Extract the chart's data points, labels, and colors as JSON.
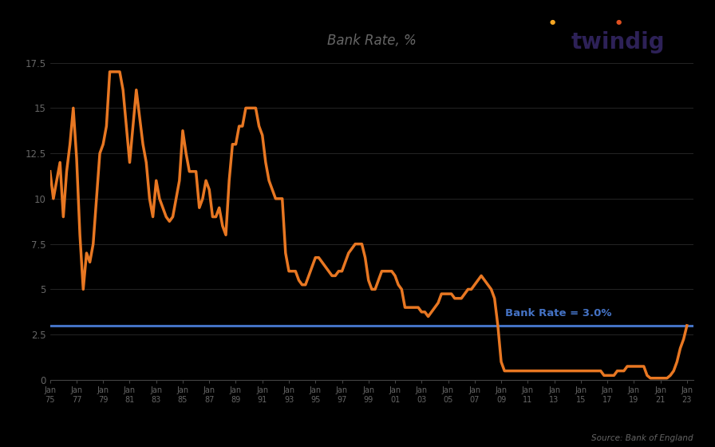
{
  "title": "Bank Rate, %",
  "source_text": "Source: Bank of England",
  "line_color": "#E87722",
  "hline_color": "#4472C4",
  "hline_value": 3.0,
  "hline_label": "Bank Rate = 3.0%",
  "bg_color": "#000000",
  "text_color": "#666666",
  "twindig_color": "#2D2157",
  "twindig_orange": "#E87722",
  "ylim": [
    0,
    18
  ],
  "yticks": [
    0,
    2.5,
    5,
    7.5,
    10,
    12.5,
    15,
    17.5
  ],
  "data": [
    [
      1975.0,
      11.5
    ],
    [
      1975.25,
      10.0
    ],
    [
      1975.5,
      11.0
    ],
    [
      1975.75,
      12.0
    ],
    [
      1976.0,
      9.0
    ],
    [
      1976.25,
      11.5
    ],
    [
      1976.5,
      13.0
    ],
    [
      1976.75,
      15.0
    ],
    [
      1977.0,
      12.25
    ],
    [
      1977.25,
      8.0
    ],
    [
      1977.5,
      5.0
    ],
    [
      1977.75,
      7.0
    ],
    [
      1978.0,
      6.5
    ],
    [
      1978.25,
      7.5
    ],
    [
      1978.5,
      10.0
    ],
    [
      1978.75,
      12.5
    ],
    [
      1979.0,
      13.0
    ],
    [
      1979.25,
      14.0
    ],
    [
      1979.5,
      17.0
    ],
    [
      1979.75,
      17.0
    ],
    [
      1980.0,
      17.0
    ],
    [
      1980.25,
      17.0
    ],
    [
      1980.5,
      16.0
    ],
    [
      1980.75,
      14.0
    ],
    [
      1981.0,
      12.0
    ],
    [
      1981.25,
      14.0
    ],
    [
      1981.5,
      16.0
    ],
    [
      1981.75,
      14.5
    ],
    [
      1982.0,
      13.0
    ],
    [
      1982.25,
      12.0
    ],
    [
      1982.5,
      10.0
    ],
    [
      1982.75,
      9.0
    ],
    [
      1983.0,
      11.0
    ],
    [
      1983.25,
      10.0
    ],
    [
      1983.5,
      9.5
    ],
    [
      1983.75,
      9.0
    ],
    [
      1984.0,
      8.75
    ],
    [
      1984.25,
      9.0
    ],
    [
      1984.5,
      10.0
    ],
    [
      1984.75,
      11.0
    ],
    [
      1985.0,
      13.75
    ],
    [
      1985.25,
      12.5
    ],
    [
      1985.5,
      11.5
    ],
    [
      1985.75,
      11.5
    ],
    [
      1986.0,
      11.5
    ],
    [
      1986.25,
      9.5
    ],
    [
      1986.5,
      10.0
    ],
    [
      1986.75,
      11.0
    ],
    [
      1987.0,
      10.5
    ],
    [
      1987.25,
      9.0
    ],
    [
      1987.5,
      9.0
    ],
    [
      1987.75,
      9.5
    ],
    [
      1988.0,
      8.5
    ],
    [
      1988.25,
      8.0
    ],
    [
      1988.5,
      11.0
    ],
    [
      1988.75,
      13.0
    ],
    [
      1989.0,
      13.0
    ],
    [
      1989.25,
      14.0
    ],
    [
      1989.5,
      14.0
    ],
    [
      1989.75,
      15.0
    ],
    [
      1990.0,
      15.0
    ],
    [
      1990.25,
      15.0
    ],
    [
      1990.5,
      15.0
    ],
    [
      1990.75,
      14.0
    ],
    [
      1991.0,
      13.5
    ],
    [
      1991.25,
      12.0
    ],
    [
      1991.5,
      11.0
    ],
    [
      1991.75,
      10.5
    ],
    [
      1992.0,
      10.0
    ],
    [
      1992.25,
      10.0
    ],
    [
      1992.5,
      10.0
    ],
    [
      1992.75,
      7.0
    ],
    [
      1993.0,
      6.0
    ],
    [
      1993.25,
      6.0
    ],
    [
      1993.5,
      6.0
    ],
    [
      1993.75,
      5.5
    ],
    [
      1994.0,
      5.25
    ],
    [
      1994.25,
      5.25
    ],
    [
      1994.5,
      5.75
    ],
    [
      1994.75,
      6.25
    ],
    [
      1995.0,
      6.75
    ],
    [
      1995.25,
      6.75
    ],
    [
      1995.5,
      6.5
    ],
    [
      1995.75,
      6.25
    ],
    [
      1996.0,
      6.0
    ],
    [
      1996.25,
      5.75
    ],
    [
      1996.5,
      5.75
    ],
    [
      1996.75,
      6.0
    ],
    [
      1997.0,
      6.0
    ],
    [
      1997.25,
      6.5
    ],
    [
      1997.5,
      7.0
    ],
    [
      1997.75,
      7.25
    ],
    [
      1998.0,
      7.5
    ],
    [
      1998.25,
      7.5
    ],
    [
      1998.5,
      7.5
    ],
    [
      1998.75,
      6.75
    ],
    [
      1999.0,
      5.5
    ],
    [
      1999.25,
      5.0
    ],
    [
      1999.5,
      5.0
    ],
    [
      1999.75,
      5.5
    ],
    [
      2000.0,
      6.0
    ],
    [
      2000.25,
      6.0
    ],
    [
      2000.5,
      6.0
    ],
    [
      2000.75,
      6.0
    ],
    [
      2001.0,
      5.75
    ],
    [
      2001.25,
      5.25
    ],
    [
      2001.5,
      5.0
    ],
    [
      2001.75,
      4.0
    ],
    [
      2002.0,
      4.0
    ],
    [
      2002.25,
      4.0
    ],
    [
      2002.5,
      4.0
    ],
    [
      2002.75,
      4.0
    ],
    [
      2003.0,
      3.75
    ],
    [
      2003.25,
      3.75
    ],
    [
      2003.5,
      3.5
    ],
    [
      2003.75,
      3.75
    ],
    [
      2004.0,
      4.0
    ],
    [
      2004.25,
      4.25
    ],
    [
      2004.5,
      4.75
    ],
    [
      2004.75,
      4.75
    ],
    [
      2005.0,
      4.75
    ],
    [
      2005.25,
      4.75
    ],
    [
      2005.5,
      4.5
    ],
    [
      2005.75,
      4.5
    ],
    [
      2006.0,
      4.5
    ],
    [
      2006.25,
      4.75
    ],
    [
      2006.5,
      5.0
    ],
    [
      2006.75,
      5.0
    ],
    [
      2007.0,
      5.25
    ],
    [
      2007.25,
      5.5
    ],
    [
      2007.5,
      5.75
    ],
    [
      2007.75,
      5.5
    ],
    [
      2008.0,
      5.25
    ],
    [
      2008.25,
      5.0
    ],
    [
      2008.5,
      4.5
    ],
    [
      2008.75,
      3.0
    ],
    [
      2009.0,
      1.0
    ],
    [
      2009.25,
      0.5
    ],
    [
      2009.5,
      0.5
    ],
    [
      2009.75,
      0.5
    ],
    [
      2010.0,
      0.5
    ],
    [
      2010.25,
      0.5
    ],
    [
      2010.5,
      0.5
    ],
    [
      2010.75,
      0.5
    ],
    [
      2011.0,
      0.5
    ],
    [
      2011.25,
      0.5
    ],
    [
      2011.5,
      0.5
    ],
    [
      2011.75,
      0.5
    ],
    [
      2012.0,
      0.5
    ],
    [
      2012.25,
      0.5
    ],
    [
      2012.5,
      0.5
    ],
    [
      2012.75,
      0.5
    ],
    [
      2013.0,
      0.5
    ],
    [
      2013.25,
      0.5
    ],
    [
      2013.5,
      0.5
    ],
    [
      2013.75,
      0.5
    ],
    [
      2014.0,
      0.5
    ],
    [
      2014.25,
      0.5
    ],
    [
      2014.5,
      0.5
    ],
    [
      2014.75,
      0.5
    ],
    [
      2015.0,
      0.5
    ],
    [
      2015.25,
      0.5
    ],
    [
      2015.5,
      0.5
    ],
    [
      2015.75,
      0.5
    ],
    [
      2016.0,
      0.5
    ],
    [
      2016.25,
      0.5
    ],
    [
      2016.5,
      0.5
    ],
    [
      2016.75,
      0.25
    ],
    [
      2017.0,
      0.25
    ],
    [
      2017.25,
      0.25
    ],
    [
      2017.5,
      0.25
    ],
    [
      2017.75,
      0.5
    ],
    [
      2018.0,
      0.5
    ],
    [
      2018.25,
      0.5
    ],
    [
      2018.5,
      0.75
    ],
    [
      2018.75,
      0.75
    ],
    [
      2019.0,
      0.75
    ],
    [
      2019.25,
      0.75
    ],
    [
      2019.5,
      0.75
    ],
    [
      2019.75,
      0.75
    ],
    [
      2020.0,
      0.25
    ],
    [
      2020.25,
      0.1
    ],
    [
      2020.5,
      0.1
    ],
    [
      2020.75,
      0.1
    ],
    [
      2021.0,
      0.1
    ],
    [
      2021.25,
      0.1
    ],
    [
      2021.5,
      0.1
    ],
    [
      2021.75,
      0.25
    ],
    [
      2022.0,
      0.5
    ],
    [
      2022.25,
      1.0
    ],
    [
      2022.5,
      1.75
    ],
    [
      2022.75,
      2.25
    ],
    [
      2023.0,
      3.0
    ]
  ],
  "xtick_years": [
    1975,
    1977,
    1979,
    1981,
    1983,
    1985,
    1987,
    1989,
    1991,
    1993,
    1995,
    1997,
    1999,
    2001,
    2003,
    2005,
    2007,
    2009,
    2011,
    2013,
    2015,
    2017,
    2019,
    2021,
    2023
  ],
  "xtick_labels": [
    "Jan\n75",
    "Jan\n77",
    "Jan\n79",
    "Jan\n81",
    "Jan\n83",
    "Jan\n85",
    "Jan\n87",
    "Jan\n89",
    "Jan\n91",
    "Jan\n93",
    "Jan\n95",
    "Jan\n97",
    "Jan\n99",
    "Jan\n01",
    "Jan\n03",
    "Jan\n05",
    "Jan\n07",
    "Jan\n09",
    "Jan\n11",
    "Jan\n13",
    "Jan\n15",
    "Jan\n17",
    "Jan\n19",
    "Jan\n21",
    "Jan\n23"
  ]
}
